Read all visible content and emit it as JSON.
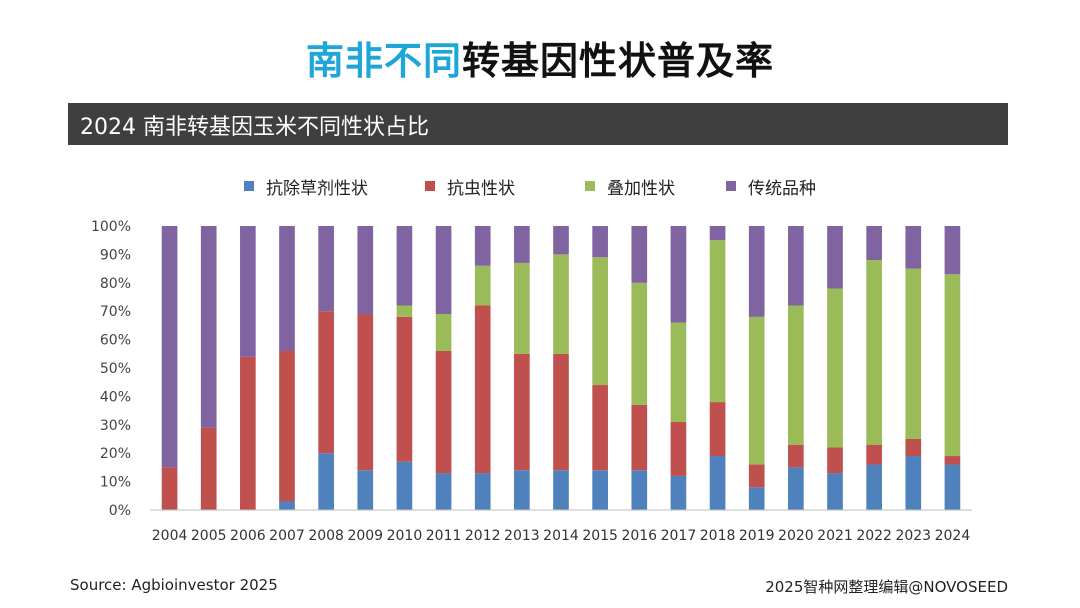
{
  "page": {
    "title_highlight": "南非不同",
    "title_rest": "转基因性状普及率",
    "banner": "2024 南非转基因玉米不同性状占比",
    "source": "Source: Agbioinvestor 2025",
    "credit": "2025智种网整理编辑@NOVOSEED"
  },
  "chart_data": {
    "type": "bar",
    "stacked": true,
    "title": "",
    "xlabel": "",
    "ylabel": "",
    "ylim": [
      0,
      100
    ],
    "y_ticks": [
      "0%",
      "10%",
      "20%",
      "30%",
      "40%",
      "50%",
      "60%",
      "70%",
      "80%",
      "90%",
      "100%"
    ],
    "grid": false,
    "legend_position": "top",
    "categories": [
      "2004",
      "2005",
      "2006",
      "2007",
      "2008",
      "2009",
      "2010",
      "2011",
      "2012",
      "2013",
      "2014",
      "2015",
      "2016",
      "2017",
      "2018",
      "2019",
      "2020",
      "2021",
      "2022",
      "2023",
      "2024"
    ],
    "series": [
      {
        "name": "抗除草剂性状",
        "color": "#4f81bd",
        "values": [
          0,
          0,
          0,
          3,
          20,
          14,
          17,
          13,
          13,
          14,
          14,
          14,
          14,
          12,
          19,
          8,
          15,
          13,
          16,
          19,
          16
        ]
      },
      {
        "name": "抗虫性状",
        "color": "#c0504d",
        "values": [
          15,
          29,
          54,
          53,
          50,
          55,
          51,
          43,
          59,
          41,
          41,
          30,
          23,
          19,
          19,
          8,
          8,
          9,
          7,
          6,
          3
        ]
      },
      {
        "name": "叠加性状",
        "color": "#9bbb59",
        "values": [
          0,
          0,
          0,
          0,
          0,
          0,
          4,
          13,
          14,
          32,
          35,
          45,
          43,
          35,
          57,
          52,
          49,
          56,
          65,
          60,
          64
        ]
      },
      {
        "name": "传统品种",
        "color": "#8064a2",
        "values": [
          85,
          71,
          46,
          44,
          30,
          31,
          28,
          31,
          14,
          13,
          10,
          11,
          20,
          34,
          5,
          32,
          28,
          22,
          12,
          15,
          17
        ]
      }
    ]
  }
}
